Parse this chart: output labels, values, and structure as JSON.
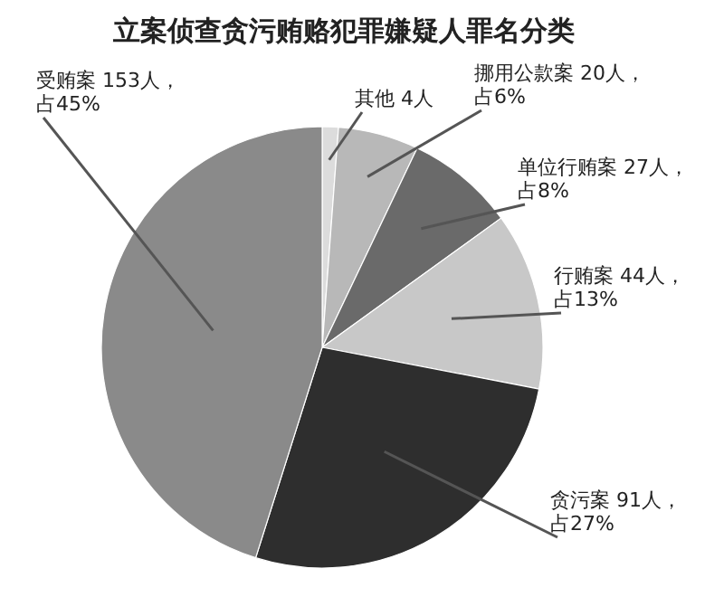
{
  "chart_data": {
    "type": "pie",
    "title": "立案侦查贪污贿赂犯罪嫌疑人罪名分类",
    "categories": [
      "其他",
      "挪用公款案",
      "单位行贿案",
      "行贿案",
      "贪污案",
      "受贿案"
    ],
    "values": [
      4,
      20,
      27,
      44,
      91,
      153
    ],
    "value_labels": [
      "4人",
      "20人，占6%",
      "27人，占8%",
      "44人，占13%",
      "91人，占27%",
      "153人，占45%"
    ],
    "colors": [
      "#dcdcdc",
      "#b8b8b8",
      "#6a6a6a",
      "#c8c8c8",
      "#2e2e2e",
      "#8a8a8a"
    ]
  }
}
